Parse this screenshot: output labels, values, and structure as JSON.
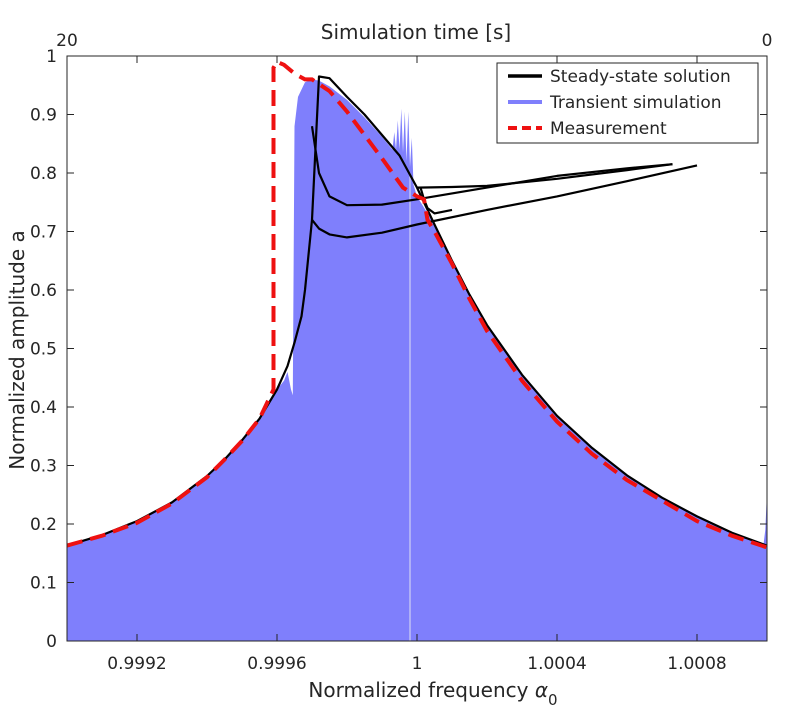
{
  "chart_data": {
    "type": "area",
    "xlabel": "Normalized frequency",
    "xlabel_symbol": "α",
    "xlabel_subscript": "0",
    "ylabel": "Normalized amplitude a",
    "top_xlabel": "Simulation time [s]",
    "top_x_ticks": [
      {
        "label": "20",
        "x": 0.999
      },
      {
        "label": "0",
        "x": 1.001
      }
    ],
    "xlim": [
      0.999,
      1.001
    ],
    "ylim": [
      0,
      1
    ],
    "x_ticks": [
      0.9992,
      0.9996,
      1,
      1.0004,
      1.0008
    ],
    "x_tick_labels": [
      "0.9992",
      "0.9996",
      "1",
      "1.0004",
      "1.0008"
    ],
    "y_ticks": [
      0,
      0.1,
      0.2,
      0.3,
      0.4,
      0.5,
      0.6,
      0.7,
      0.8,
      0.9,
      1
    ],
    "y_tick_labels": [
      "0",
      "0.1",
      "0.2",
      "0.3",
      "0.4",
      "0.5",
      "0.6",
      "0.7",
      "0.8",
      "0.9",
      "1"
    ],
    "legend_position": "top-right",
    "colors": {
      "steady": "#000000",
      "transient": "#7f7ffc",
      "measurement": "#ee1111",
      "axis": "#262626"
    },
    "series": [
      {
        "name": "Steady-state solution",
        "role": "steady",
        "style": "solid",
        "branches": [
          {
            "x": [
              0.999,
              0.9991,
              0.9992,
              0.9993,
              0.9994,
              0.99945,
              0.9995,
              0.99955,
              0.9996,
              0.99963,
              0.99965,
              0.99967,
              0.99968,
              0.9997,
              0.99972,
              0.99975,
              0.9998,
              0.99985,
              0.9999,
              0.99995,
              1.0,
              1.00005,
              1.0001,
              1.00015,
              1.0002,
              1.0003,
              1.0004,
              1.0005,
              1.0006,
              1.0007,
              1.0008,
              1.0009,
              1.001
            ],
            "y": [
              0.163,
              0.181,
              0.205,
              0.237,
              0.282,
              0.31,
              0.343,
              0.38,
              0.43,
              0.47,
              0.51,
              0.555,
              0.6,
              0.72,
              0.965,
              0.962,
              0.93,
              0.9,
              0.865,
              0.83,
              0.775,
              0.712,
              0.65,
              0.592,
              0.54,
              0.455,
              0.385,
              0.33,
              0.283,
              0.245,
              0.213,
              0.185,
              0.163
            ]
          },
          {
            "x": [
              0.9997,
              0.99972,
              0.99975,
              0.9998,
              0.9999,
              1.0,
              1.0002,
              1.0004,
              1.0006,
              1.0008
            ],
            "y": [
              0.72,
              0.705,
              0.695,
              0.69,
              0.698,
              0.712,
              0.737,
              0.76,
              0.786,
              0.813
            ]
          },
          {
            "x": [
              0.9997,
              0.99972,
              0.99975,
              0.9998,
              0.9999,
              1.0,
              1.0002,
              1.0004,
              1.0006,
              1.00073
            ],
            "y": [
              0.88,
              0.8,
              0.76,
              0.745,
              0.746,
              0.755,
              0.775,
              0.795,
              0.808,
              0.815
            ]
          },
          {
            "x": [
              1.0,
              1.0001,
              1.0002,
              1.0004,
              1.0006,
              1.00073
            ],
            "y": [
              0.775,
              0.776,
              0.778,
              0.79,
              0.805,
              0.815
            ]
          },
          {
            "x": [
              1.00001,
              1.00002,
              1.00003,
              1.00005,
              1.0001
            ],
            "y": [
              0.775,
              0.755,
              0.74,
              0.731,
              0.737
            ]
          }
        ]
      },
      {
        "name": "Transient simulation",
        "role": "transient",
        "style": "filled",
        "x": [
          0.999,
          0.9991,
          0.9992,
          0.9993,
          0.9994,
          0.99945,
          0.9995,
          0.99955,
          0.9996,
          0.99962,
          0.99963,
          0.99964,
          0.999645,
          0.99965,
          0.99966,
          0.99968,
          0.9997,
          0.99972,
          0.99975,
          0.9998,
          0.99985,
          0.9999,
          0.99993,
          0.999935,
          0.99994,
          0.999945,
          0.99995,
          0.999955,
          0.99996,
          0.999965,
          0.99997,
          0.999975,
          0.99998,
          0.999985,
          0.99999,
          1.0,
          1.00005,
          1.0001,
          1.00015,
          1.0002,
          1.0003,
          1.0004,
          1.0005,
          1.0006,
          1.0007,
          1.0008,
          1.0009,
          1.00099,
          1.000995,
          1.001,
          1.001
        ],
        "y": [
          0.163,
          0.181,
          0.205,
          0.237,
          0.282,
          0.31,
          0.343,
          0.38,
          0.43,
          0.445,
          0.46,
          0.43,
          0.42,
          0.88,
          0.93,
          0.955,
          0.96,
          0.958,
          0.948,
          0.925,
          0.895,
          0.862,
          0.84,
          0.87,
          0.84,
          0.89,
          0.84,
          0.91,
          0.835,
          0.905,
          0.82,
          0.905,
          0.81,
          0.86,
          0.78,
          0.76,
          0.712,
          0.65,
          0.592,
          0.54,
          0.455,
          0.385,
          0.33,
          0.283,
          0.245,
          0.213,
          0.185,
          0.165,
          0.19,
          0.255,
          0
        ]
      },
      {
        "name": "Measurement",
        "role": "measurement",
        "style": "dashed",
        "x": [
          0.999,
          0.9991,
          0.9992,
          0.9993,
          0.9994,
          0.99945,
          0.9995,
          0.99955,
          0.99959,
          0.99959,
          0.99959,
          0.9996,
          0.99962,
          0.99965,
          0.99968,
          0.9997,
          0.99975,
          0.9998,
          0.99985,
          0.9999,
          0.99993,
          0.99996,
          1.0,
          1.00002,
          1.00003,
          1.00005,
          1.0001,
          1.00015,
          1.0002,
          1.0003,
          1.0004,
          1.0005,
          1.0006,
          1.0007,
          1.0008,
          1.0009,
          1.001
        ],
        "y": [
          0.163,
          0.18,
          0.202,
          0.235,
          0.28,
          0.31,
          0.342,
          0.38,
          0.43,
          0.73,
          0.98,
          0.99,
          0.985,
          0.97,
          0.96,
          0.96,
          0.94,
          0.905,
          0.865,
          0.825,
          0.8,
          0.775,
          0.76,
          0.755,
          0.72,
          0.7,
          0.645,
          0.585,
          0.53,
          0.445,
          0.375,
          0.32,
          0.275,
          0.24,
          0.205,
          0.18,
          0.16
        ]
      }
    ]
  }
}
